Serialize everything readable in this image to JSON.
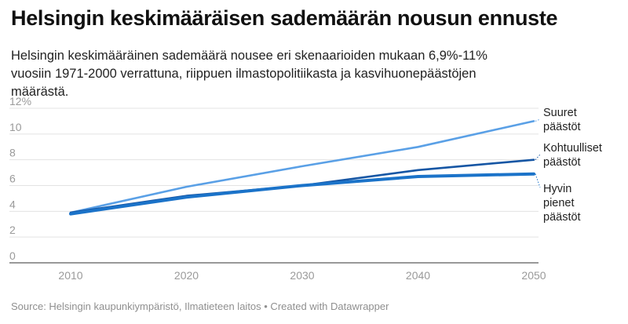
{
  "title": "Helsingin keskimääräisen sademäärän nousun ennuste",
  "subtitle": "Helsingin keskimääräinen sademäärä nousee eri skenaarioiden mukaan 6,9%-11% vuosiin 1971-2000 verrattuna, riippuen ilmastopolitiikasta ja kasvihuonepäästöjen määrästä.",
  "source": "Source: Helsingin kaupunkiympäristö, Ilmatieteen laitos • Created with Datawrapper",
  "chart_data": {
    "type": "line",
    "x": [
      2010,
      2020,
      2030,
      2040,
      2050
    ],
    "ylim": [
      0,
      12
    ],
    "yticks": [
      0,
      2,
      4,
      6,
      8,
      10,
      12
    ],
    "ytick_labels": [
      "0",
      "2",
      "4",
      "6",
      "8",
      "10",
      "12%"
    ],
    "xticks": [
      "2010",
      "2020",
      "2030",
      "2040",
      "2050"
    ],
    "grid": true,
    "series": [
      {
        "name": "Suuret päästöt",
        "label_lines": [
          "Suuret",
          "päästöt"
        ],
        "color": "#5aa0e6",
        "values": [
          3.9,
          5.9,
          7.5,
          9.0,
          11.0
        ]
      },
      {
        "name": "Kohtuulliset päästöt",
        "label_lines": [
          "Kohtuulliset",
          "päästöt"
        ],
        "color": "#1656a4",
        "values": [
          3.9,
          5.2,
          6.0,
          7.2,
          8.0
        ]
      },
      {
        "name": "Hyvin pienet päästöt",
        "label_lines": [
          "Hyvin",
          "pienet",
          "päästöt"
        ],
        "color": "#1b73c9",
        "values": [
          3.8,
          5.1,
          6.0,
          6.7,
          6.9
        ]
      }
    ]
  }
}
